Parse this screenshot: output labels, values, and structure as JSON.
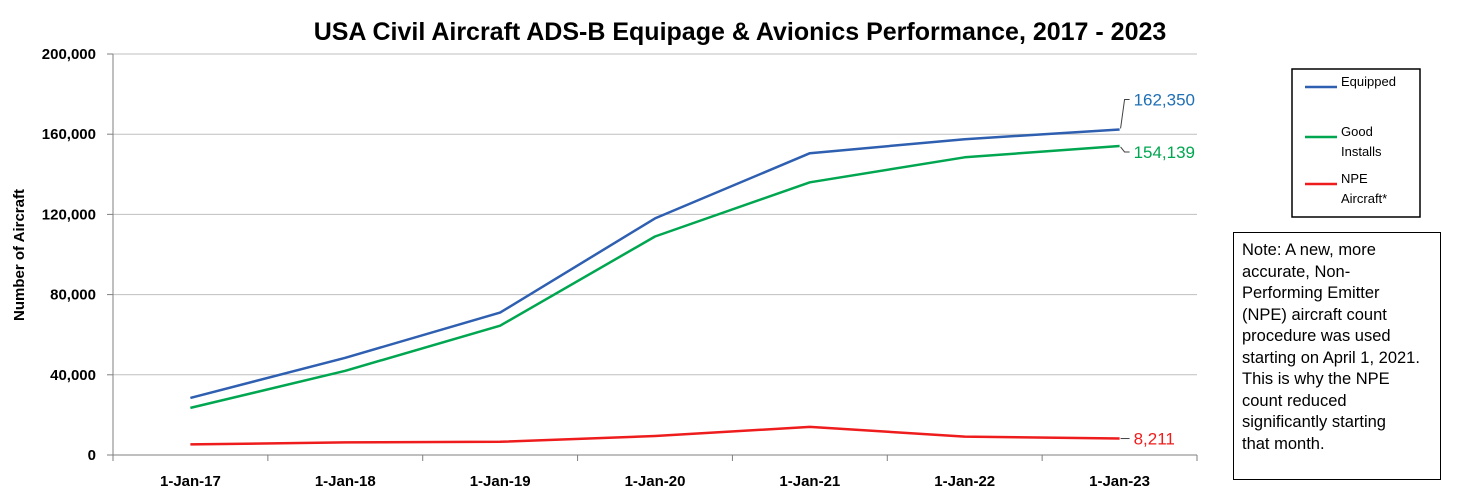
{
  "chart_data": {
    "type": "line",
    "title": "USA Civil Aircraft ADS-B Equipage & Avionics Performance, 2017 - 2023",
    "ylabel": "Number of Aircraft",
    "xlabel": "",
    "categories": [
      "1-Jan-17",
      "1-Jan-18",
      "1-Jan-19",
      "1-Jan-20",
      "1-Jan-21",
      "1-Jan-22",
      "1-Jan-23"
    ],
    "ylim": [
      0,
      200000
    ],
    "yticks": [
      0,
      40000,
      80000,
      120000,
      160000,
      200000
    ],
    "ytick_labels": [
      "0",
      "40,000",
      "80,000",
      "120,000",
      "160,000",
      "200,000"
    ],
    "grid": true,
    "legend_position": "right",
    "series": [
      {
        "name": "Equipped",
        "legend_lines": [
          "Equipped"
        ],
        "color": "#2e5fb0",
        "values": [
          28500,
          48500,
          71000,
          118000,
          150500,
          157500,
          162350
        ],
        "end_label": "162,350",
        "end_label_color": "#1f6fb4"
      },
      {
        "name": "Good Installs",
        "legend_lines": [
          "Good",
          "Installs"
        ],
        "color": "#00a650",
        "values": [
          23500,
          42000,
          64500,
          109000,
          136000,
          148500,
          154139
        ],
        "end_label": "154,139",
        "end_label_color": "#00a650"
      },
      {
        "name": "NPE Aircraft*",
        "legend_lines": [
          "NPE",
          "Aircraft*"
        ],
        "color": "#ee1c1c",
        "values": [
          5300,
          6300,
          6600,
          9500,
          14000,
          9200,
          8211
        ],
        "end_label": "8,211",
        "end_label_color": "#ee1c1c"
      }
    ]
  },
  "note": {
    "lines": [
      "Note: A new, more",
      "accurate, Non-",
      "Performing Emitter",
      "(NPE) aircraft count",
      "procedure was used",
      "starting on April 1, 2021.",
      "This is why the NPE",
      "count reduced",
      "significantly starting",
      "that month."
    ]
  }
}
